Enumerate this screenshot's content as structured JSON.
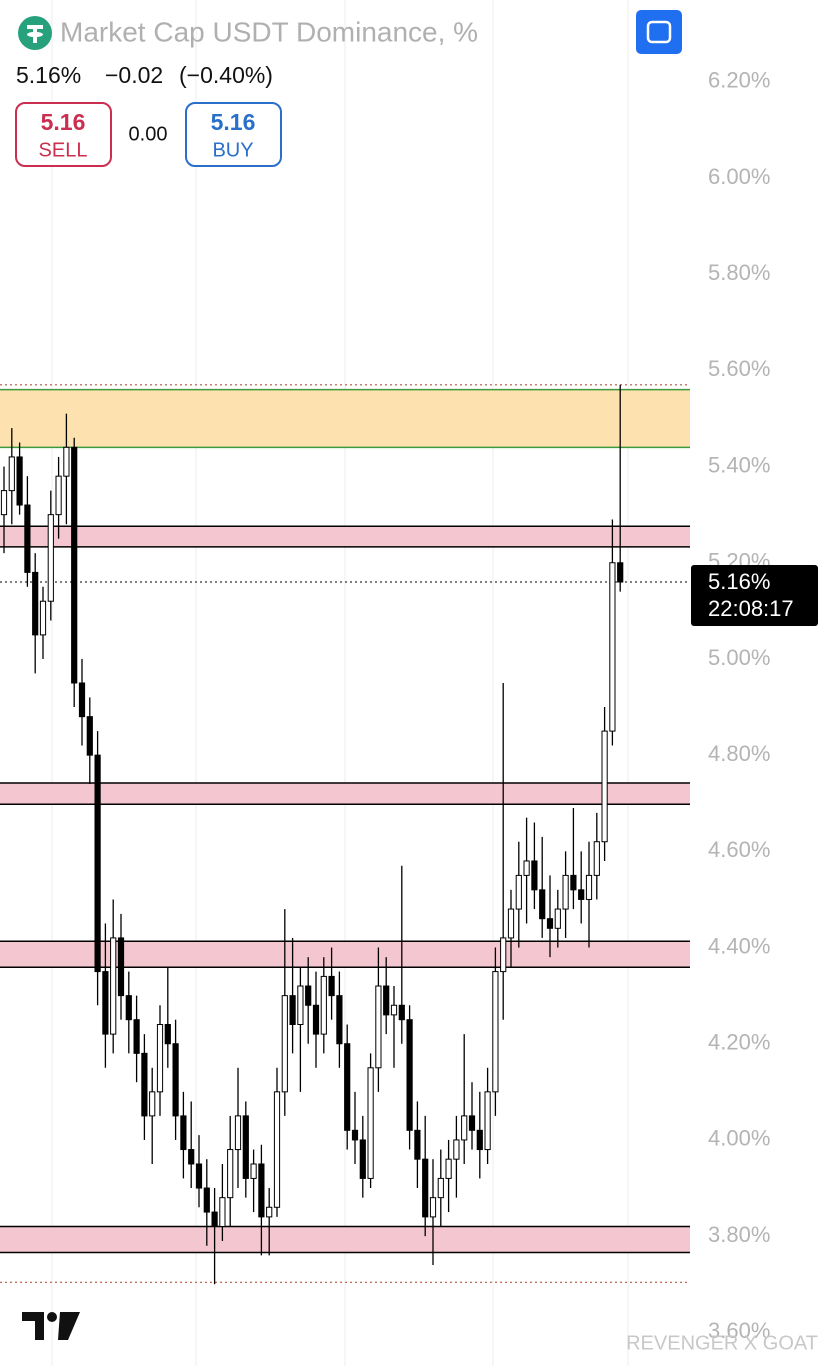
{
  "header": {
    "title": "Market Cap USDT Dominance, %",
    "last": "5.16%",
    "change": "−0.02",
    "change_pct": "(−0.40%)",
    "sell_price": "5.16",
    "sell_label": "SELL",
    "spread": "0.00",
    "buy_price": "5.16",
    "buy_label": "BUY",
    "watermark": "REVENGER X GOAT"
  },
  "chart_data": {
    "type": "candlestick",
    "ylim": [
      3.53,
      6.37
    ],
    "yticks": [
      {
        "value": 3.6,
        "label": "3.60%"
      },
      {
        "value": 3.8,
        "label": "3.80%"
      },
      {
        "value": 4.0,
        "label": "4.00%"
      },
      {
        "value": 4.2,
        "label": "4.20%"
      },
      {
        "value": 4.4,
        "label": "4.40%"
      },
      {
        "value": 4.6,
        "label": "4.60%"
      },
      {
        "value": 4.8,
        "label": "4.80%"
      },
      {
        "value": 5.0,
        "label": "5.00%"
      },
      {
        "value": 5.2,
        "label": "5.20%"
      },
      {
        "value": 5.4,
        "label": "5.40%"
      },
      {
        "value": 5.6,
        "label": "5.60%"
      },
      {
        "value": 5.8,
        "label": "5.80%"
      },
      {
        "value": 6.0,
        "label": "6.00%"
      },
      {
        "value": 6.2,
        "label": "6.20%"
      }
    ],
    "up_color": "#ffffff",
    "down_color": "#000000",
    "wick_color": "#000000",
    "open": [
      5.3,
      5.35,
      5.42,
      5.32,
      5.18,
      5.05,
      5.12,
      5.3,
      5.38,
      5.44,
      4.95,
      4.88,
      4.8,
      4.35,
      4.22,
      4.42,
      4.3,
      4.25,
      4.18,
      4.05,
      4.1,
      4.24,
      4.2,
      4.05,
      3.98,
      3.95,
      3.9,
      3.85,
      3.82,
      3.88,
      3.98,
      4.05,
      3.92,
      3.95,
      3.84,
      3.86,
      4.1,
      4.3,
      4.24,
      4.32,
      4.28,
      4.22,
      4.34,
      4.3,
      4.2,
      4.02,
      4.0,
      3.92,
      4.15,
      4.32,
      4.26,
      4.28,
      4.25,
      4.02,
      3.96,
      3.84,
      3.88,
      3.92,
      3.96,
      4.0,
      4.05,
      4.02,
      3.98,
      4.1,
      4.35,
      4.42,
      4.48,
      4.55,
      4.58,
      4.52,
      4.46,
      4.44,
      4.48,
      4.55,
      4.52,
      4.5,
      4.55,
      4.62,
      4.85,
      5.2
    ],
    "high": [
      5.4,
      5.48,
      5.45,
      5.38,
      5.22,
      5.15,
      5.35,
      5.42,
      5.51,
      5.46,
      5.0,
      4.92,
      4.85,
      4.45,
      4.5,
      4.47,
      4.35,
      4.3,
      4.22,
      4.15,
      4.28,
      4.36,
      4.25,
      4.1,
      4.08,
      4.01,
      3.96,
      3.9,
      3.95,
      4.05,
      4.15,
      4.08,
      3.98,
      3.99,
      3.9,
      4.15,
      4.48,
      4.42,
      4.36,
      4.38,
      4.35,
      4.38,
      4.4,
      4.35,
      4.24,
      4.1,
      4.05,
      4.18,
      4.4,
      4.38,
      4.32,
      4.57,
      4.28,
      4.08,
      4.05,
      3.96,
      3.98,
      4.0,
      4.05,
      4.22,
      4.12,
      4.1,
      4.15,
      4.4,
      4.95,
      4.52,
      4.62,
      4.67,
      4.66,
      4.63,
      4.55,
      4.52,
      4.6,
      4.69,
      4.6,
      4.62,
      4.68,
      4.9,
      5.29,
      5.57
    ],
    "low": [
      5.22,
      5.28,
      5.3,
      5.15,
      4.97,
      5.0,
      5.08,
      5.25,
      5.28,
      4.9,
      4.82,
      4.74,
      4.28,
      4.15,
      4.18,
      4.25,
      4.18,
      4.12,
      4.0,
      3.95,
      4.05,
      4.15,
      4.0,
      3.92,
      3.9,
      3.86,
      3.78,
      3.7,
      3.79,
      3.82,
      3.9,
      3.88,
      3.85,
      3.76,
      3.76,
      3.84,
      4.05,
      4.18,
      4.1,
      4.2,
      4.15,
      4.18,
      4.25,
      4.15,
      3.98,
      3.95,
      3.88,
      3.9,
      4.1,
      4.22,
      4.15,
      4.2,
      3.98,
      3.9,
      3.8,
      3.74,
      3.82,
      3.85,
      3.88,
      3.95,
      3.98,
      3.92,
      3.95,
      4.05,
      4.25,
      4.36,
      4.4,
      4.45,
      4.48,
      4.42,
      4.38,
      4.4,
      4.42,
      4.48,
      4.45,
      4.4,
      4.5,
      4.58,
      4.82,
      5.14
    ],
    "close": [
      5.35,
      5.42,
      5.32,
      5.18,
      5.05,
      5.12,
      5.3,
      5.38,
      5.44,
      4.95,
      4.88,
      4.8,
      4.35,
      4.22,
      4.42,
      4.3,
      4.25,
      4.18,
      4.05,
      4.1,
      4.24,
      4.2,
      4.05,
      3.98,
      3.95,
      3.9,
      3.85,
      3.82,
      3.88,
      3.98,
      4.05,
      3.92,
      3.95,
      3.84,
      3.86,
      4.1,
      4.3,
      4.24,
      4.32,
      4.28,
      4.22,
      4.34,
      4.3,
      4.2,
      4.02,
      4.0,
      3.92,
      4.15,
      4.32,
      4.26,
      4.28,
      4.25,
      4.02,
      3.96,
      3.84,
      3.88,
      3.92,
      3.96,
      4.0,
      4.05,
      4.02,
      3.98,
      4.1,
      4.35,
      4.42,
      4.48,
      4.55,
      4.58,
      4.52,
      4.46,
      4.44,
      4.48,
      4.55,
      4.52,
      4.5,
      4.55,
      4.62,
      4.85,
      5.2,
      5.16
    ],
    "zones": [
      {
        "from": 5.44,
        "to": 5.56,
        "color": "#fde2b0",
        "border": "#3c9a3c"
      },
      {
        "from": 5.233,
        "to": 5.276,
        "color": "#f4c6cf",
        "border": "#000000"
      },
      {
        "from": 4.698,
        "to": 4.742,
        "color": "#f4c6cf",
        "border": "#000000"
      },
      {
        "from": 4.359,
        "to": 4.413,
        "color": "#f4c6cf",
        "border": "#000000"
      },
      {
        "from": 3.766,
        "to": 3.82,
        "color": "#f4c6cf",
        "border": "#000000"
      }
    ],
    "dotted_levels": [
      5.57,
      3.704
    ],
    "last_price": 5.16,
    "last_price_label": "5.16%",
    "countdown": "22:08:17"
  }
}
